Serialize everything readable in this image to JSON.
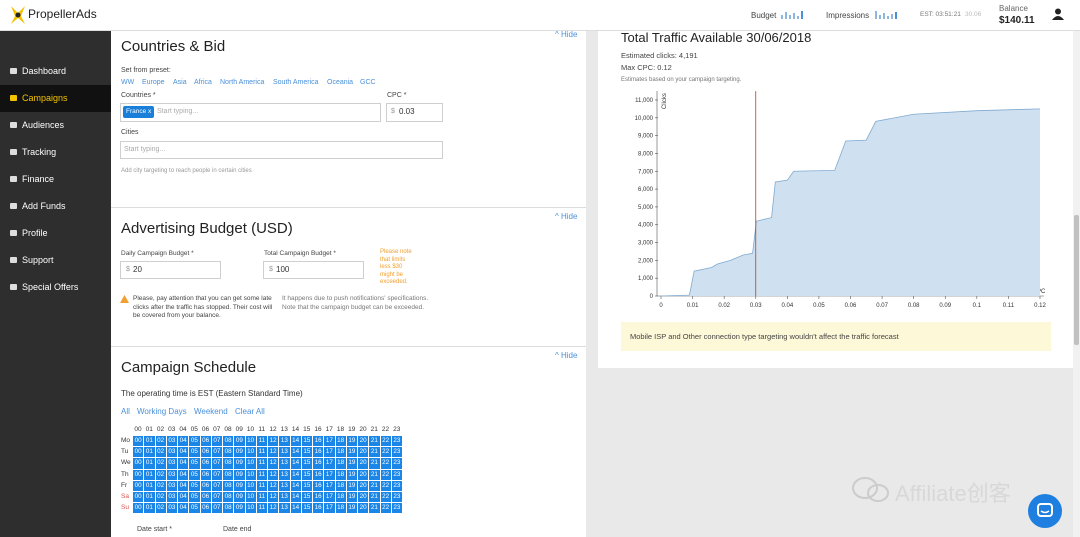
{
  "header": {
    "logo": "PropellerAds",
    "budget": "Budget",
    "impressions": "Impressions",
    "time": "EST: 03:51:21",
    "date": "30.06",
    "balance_label": "Balance",
    "balance": "$140.11"
  },
  "sidebar": [
    "Dashboard",
    "Campaigns",
    "Audiences",
    "Tracking",
    "Finance",
    "Add Funds",
    "Profile",
    "Support",
    "Special Offers"
  ],
  "countries": {
    "title": "Countries & Bid",
    "hide": "Hide",
    "preset_label": "Set from preset:",
    "presets": [
      "WW",
      "Europe",
      "Asia",
      "Africa",
      "North America",
      "South America",
      "Oceania",
      "GCC"
    ],
    "countries_label": "Countries *",
    "chip": "France",
    "chip_close": "x",
    "placeholder": "Start typing...",
    "cpc_label": "CPC *",
    "cpc_currency": "$",
    "cpc_value": "0.03",
    "cities_label": "Cities",
    "cities_placeholder": "Start typing...",
    "cities_hint": "Add city targeting to reach people in certain cities"
  },
  "budget": {
    "title": "Advertising Budget (USD)",
    "hide": "Hide",
    "daily_label": "Daily Campaign Budget *",
    "daily_currency": "$",
    "daily_value": "20",
    "total_label": "Total Campaign Budget *",
    "total_currency": "$",
    "total_value": "100",
    "total_note": "Please note that limits less $30 might be exceeded.",
    "warning": "Please, pay attention that you can get some late clicks after the traffic has stopped. Their cost will be covered from your balance.",
    "info": "It happens due to push notifications' specifications. Note that the campaign budget can be exceeded."
  },
  "schedule": {
    "title": "Campaign Schedule",
    "hide": "Hide",
    "timezone": "The operating time is EST (Eastern Standard Time)",
    "quick": [
      "All",
      "Working Days",
      "Weekend",
      "Clear All"
    ],
    "hours": [
      "00",
      "01",
      "02",
      "03",
      "04",
      "05",
      "06",
      "07",
      "08",
      "09",
      "10",
      "11",
      "12",
      "13",
      "14",
      "15",
      "16",
      "17",
      "18",
      "19",
      "20",
      "21",
      "22",
      "23"
    ],
    "days": [
      "Mo",
      "Tu",
      "We",
      "Th",
      "Fr",
      "Sa",
      "Su"
    ],
    "date_start": "Date start *",
    "date_end": "Date end"
  },
  "chart_data": {
    "type": "area",
    "title": "Total Traffic Available 30/06/2018",
    "estimated": "Estimated clicks: 4,191",
    "max_cpc": "Max CPC: 0.12",
    "note": "Estimates based on your campaign targeting.",
    "x_label": "CPC",
    "y_label": "Clicks",
    "x": [
      0,
      0.009,
      0.0105,
      0.016,
      0.018,
      0.022,
      0.026,
      0.029,
      0.0302,
      0.035,
      0.0362,
      0.04,
      0.042,
      0.055,
      0.0585,
      0.065,
      0.068,
      0.08,
      0.1,
      0.12
    ],
    "values": [
      0,
      50,
      1400,
      1600,
      1800,
      2000,
      2300,
      2400,
      4200,
      4400,
      6400,
      6500,
      7000,
      7050,
      8700,
      8750,
      9800,
      10200,
      10400,
      10500
    ],
    "color": "#cfe1f0",
    "line_color": "#7fa9cf",
    "cpc_marker": 0.03,
    "marker_color": "#c0392b",
    "xlim": [
      0,
      0.12
    ],
    "ylim": [
      0,
      11500
    ],
    "xticks": [
      0,
      0.01,
      0.02,
      0.03,
      0.04,
      0.05,
      0.06,
      0.07,
      0.08,
      0.09,
      0.1,
      0.11,
      0.12
    ],
    "yticks": [
      0,
      {
        "value": 1000,
        "label": "1,000"
      },
      {
        "value": 2000,
        "label": "2,000"
      },
      {
        "value": 3000,
        "label": "3,000"
      },
      {
        "value": 4000,
        "label": "4,000"
      },
      {
        "value": 5000,
        "label": "5,000"
      },
      {
        "value": 6000,
        "label": "6,000"
      },
      {
        "value": 7000,
        "label": "7,000"
      },
      {
        "value": 8000,
        "label": "8,000"
      },
      {
        "value": 9000,
        "label": "9,000"
      },
      {
        "value": 10000,
        "label": "10,000"
      },
      {
        "value": 11000,
        "label": "11,000"
      }
    ],
    "footer_note": "Mobile ISP and Other connection type targeting wouldn't affect the traffic forecast"
  },
  "watermark": "Affiliate创客"
}
